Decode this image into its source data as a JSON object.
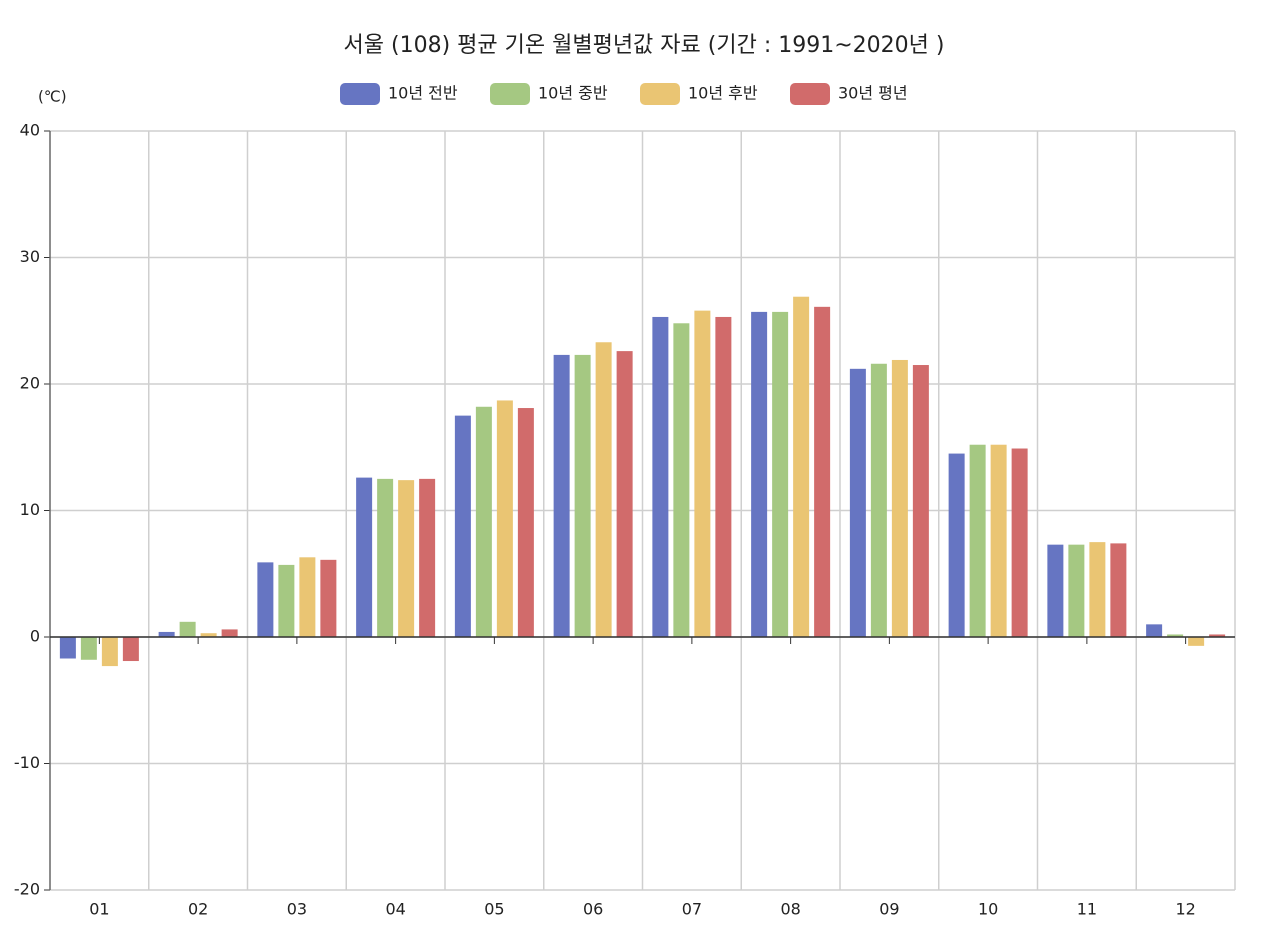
{
  "chart_data": {
    "type": "bar",
    "title": "서울 (108) 평균 기온 월별평년값 자료 (기간 : 1991~2020년 )",
    "y_label": "(℃)",
    "categories": [
      "01",
      "02",
      "03",
      "04",
      "05",
      "06",
      "07",
      "08",
      "09",
      "10",
      "11",
      "12"
    ],
    "series": [
      {
        "name": "10년 전반",
        "color": "#6675c2",
        "values": [
          -1.7,
          0.4,
          5.9,
          12.6,
          17.5,
          22.3,
          25.3,
          25.7,
          21.2,
          14.5,
          7.3,
          1.0
        ]
      },
      {
        "name": "10년 중반",
        "color": "#a5c882",
        "values": [
          -1.8,
          1.2,
          5.7,
          12.5,
          18.2,
          22.3,
          24.8,
          25.7,
          21.6,
          15.2,
          7.3,
          0.2
        ]
      },
      {
        "name": "10년 후반",
        "color": "#eac573",
        "values": [
          -2.3,
          0.3,
          6.3,
          12.4,
          18.7,
          23.3,
          25.8,
          26.9,
          21.9,
          15.2,
          7.5,
          -0.7
        ]
      },
      {
        "name": "30년 평년",
        "color": "#d16b6b",
        "values": [
          -1.9,
          0.6,
          6.1,
          12.5,
          18.1,
          22.6,
          25.3,
          26.1,
          21.5,
          14.9,
          7.4,
          0.2
        ]
      }
    ],
    "ylim": [
      -20,
      40
    ],
    "yticks": [
      -20,
      -10,
      0,
      10,
      20,
      30,
      40
    ],
    "grid": true
  }
}
